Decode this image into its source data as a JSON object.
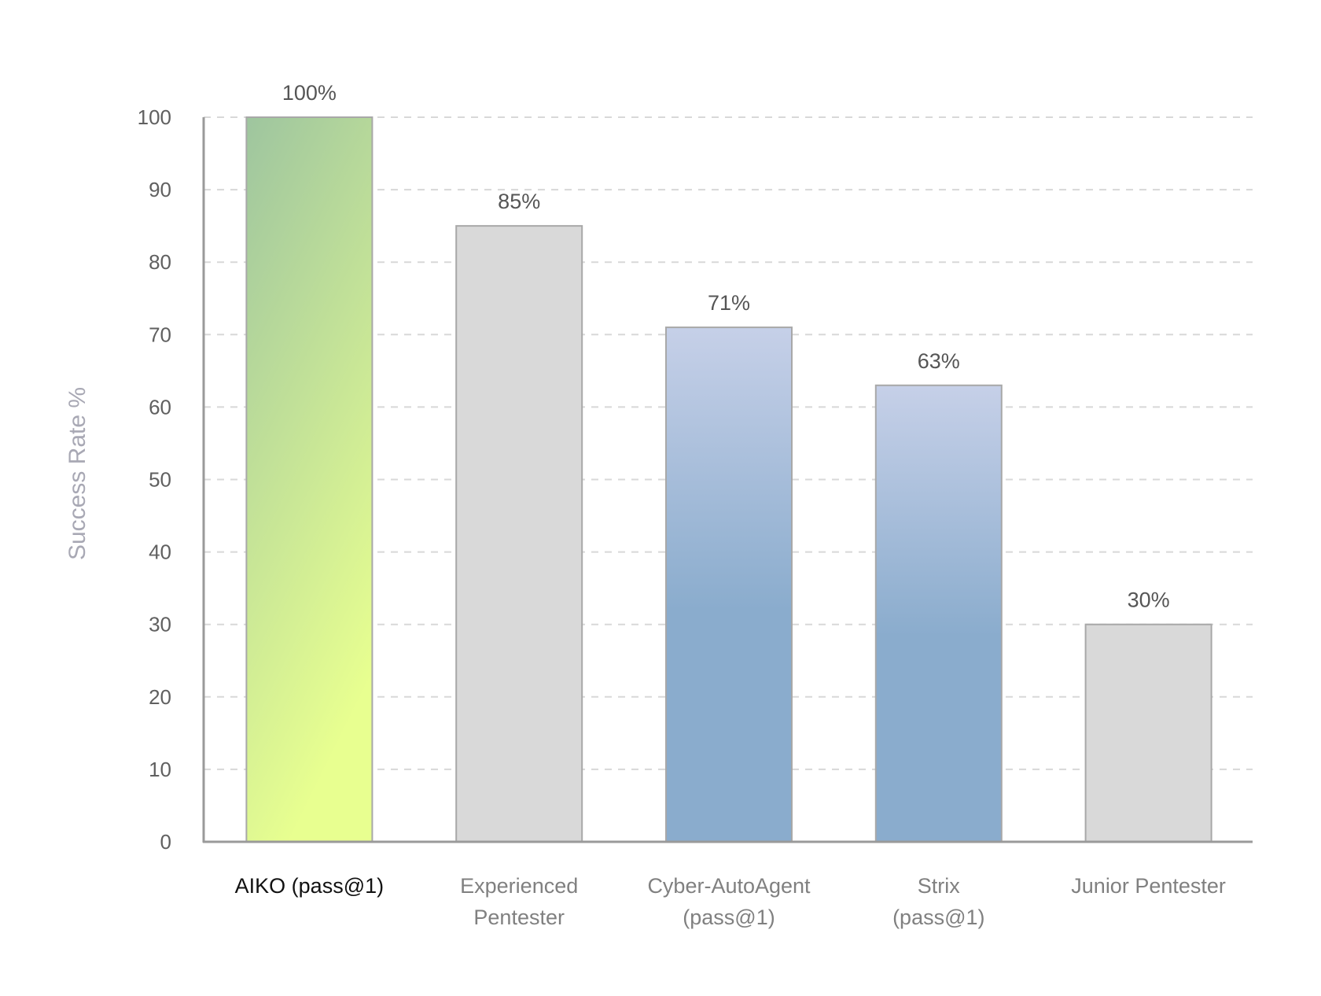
{
  "chart_data": {
    "type": "bar",
    "ylabel": "Success Rate %",
    "xlabel": "",
    "ylim": [
      0,
      100
    ],
    "yticks": [
      0,
      10,
      20,
      30,
      40,
      50,
      60,
      70,
      80,
      90,
      100
    ],
    "grid": true,
    "categories": [
      "AIKO (pass@1)",
      "Experienced Pentester",
      "Cyber-AutoAgent (pass@1)",
      "Strix (pass@1)",
      "Junior Pentester"
    ],
    "category_lines": [
      [
        "AIKO (pass@1)"
      ],
      [
        "Experienced",
        "Pentester"
      ],
      [
        "Cyber-AutoAgent",
        "(pass@1)"
      ],
      [
        "Strix",
        "(pass@1)"
      ],
      [
        "Junior Pentester"
      ]
    ],
    "values": [
      100,
      85,
      71,
      63,
      30
    ],
    "value_labels": [
      "100%",
      "85%",
      "71%",
      "63%",
      "30%"
    ],
    "bar_styles": [
      "green-gradient",
      "gray",
      "blue-gradient",
      "blue-gradient",
      "gray"
    ],
    "highlighted_category": 0,
    "colors": {
      "green_top": "#9ec59f",
      "green_bottom": "#e8ff90",
      "blue_top": "#c6d0e8",
      "blue_bottom": "#8aaccd",
      "gray": "#d9d9d9",
      "bar_border": "#a8a8a8",
      "grid": "#d8d8d8",
      "axis": "#9a9a9a"
    }
  }
}
